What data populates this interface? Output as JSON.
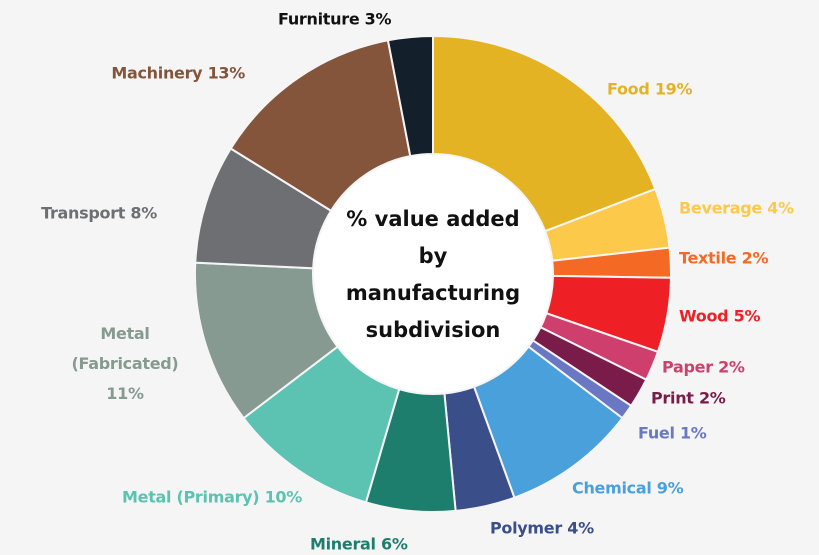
{
  "chart_data": {
    "type": "donut",
    "center_text": "% value added by manufacturing subdivision",
    "categories": [
      "Food",
      "Beverage",
      "Textile",
      "Wood",
      "Paper",
      "Print",
      "Fuel",
      "Chemical",
      "Polymer",
      "Mineral",
      "Metal (Primary)",
      "Metal (Fabricated)",
      "Transport",
      "Machinery",
      "Furniture"
    ],
    "values": [
      19,
      4,
      2,
      5,
      2,
      2,
      1,
      9,
      4,
      6,
      10,
      11,
      8,
      13,
      3
    ],
    "value_labels": [
      "19%",
      "4%",
      "2%",
      "5%",
      "2%",
      "2%",
      "1%",
      "9%",
      "4%",
      "6%",
      "10%",
      "11%",
      "8%",
      "13%",
      "3%"
    ],
    "colors": [
      "#e3b323",
      "#fdc94a",
      "#f46a25",
      "#ee2026",
      "#cf3f6d",
      "#7a1c4a",
      "#6a77c3",
      "#4aa0da",
      "#3a4f8a",
      "#1e7e6e",
      "#5cc2b2",
      "#869a91",
      "#6e6f72",
      "#84543b",
      "#13202c"
    ]
  }
}
